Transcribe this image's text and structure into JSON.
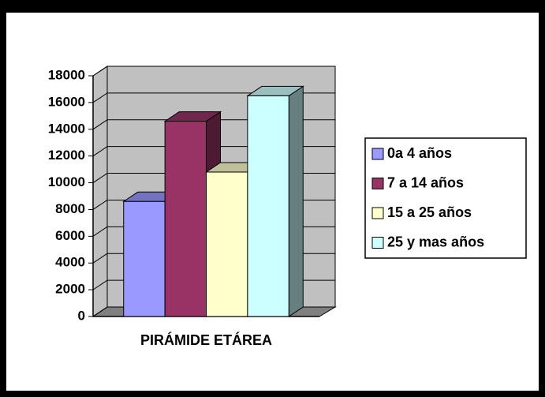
{
  "chart_data": {
    "type": "bar3d",
    "categories": [
      "PIRÁMIDE ETÁREA"
    ],
    "series": [
      {
        "name": "0a 4 años",
        "color": "#9999ff",
        "values": [
          8600
        ]
      },
      {
        "name": "7 a 14 años",
        "color": "#993366",
        "values": [
          14600
        ]
      },
      {
        "name": "15 a 25 años",
        "color": "#ffffcc",
        "values": [
          10800
        ]
      },
      {
        "name": "25 y mas años",
        "color": "#ccffff",
        "values": [
          16500
        ]
      }
    ],
    "ylim": [
      0,
      18000
    ],
    "yticks": [
      0,
      2000,
      4000,
      6000,
      8000,
      10000,
      12000,
      14000,
      16000,
      18000
    ],
    "grid": true,
    "legend": "right"
  }
}
